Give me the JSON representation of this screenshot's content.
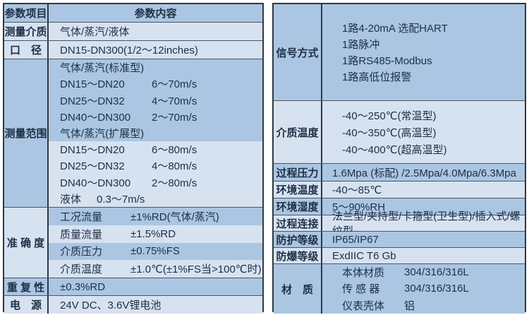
{
  "colors": {
    "medium_blue": "#abc6e2",
    "light_blue": "#d7e2f1",
    "border_dark": "#2e3842",
    "grid_line": "#4a5663",
    "text": "#1d2f44",
    "page_bg": "#ffffff"
  },
  "left_table": {
    "header": {
      "item": "参数项目",
      "content": "参数内容"
    },
    "measuring_medium": {
      "label": "测量介质",
      "value": "气体/蒸汽/液体"
    },
    "diameter": {
      "label": "口　径",
      "value": "DN15-DN300(1/2～12inches)"
    },
    "measuring_range": {
      "label": "测量范围",
      "lines": [
        {
          "name": "气体/蒸汽(标准型)",
          "value": ""
        },
        {
          "name": "DN15～DN20",
          "value": "6～70m/s"
        },
        {
          "name": "DN25～DN32",
          "value": "4～70m/s"
        },
        {
          "name": "DN40～DN300",
          "value": "2～70m/s"
        },
        {
          "name": "气体/蒸汽(扩展型)",
          "value": ""
        },
        {
          "name": "DN15～DN20",
          "value": "6～80m/s"
        },
        {
          "name": "DN25～DN32",
          "value": "4～80m/s"
        },
        {
          "name": "DN40～DN300",
          "value": "2～80m/s"
        },
        {
          "name": "液体",
          "value": "0.3～7m/s"
        }
      ]
    },
    "accuracy": {
      "label": "准 确 度",
      "lines": [
        {
          "name": "工况流量",
          "value": "±1%RD(气体/蒸汽)"
        },
        {
          "name": "质量流量",
          "value": "±1.5%RD"
        },
        {
          "name": "介质压力",
          "value": "±0.75%FS"
        },
        {
          "name": "介质温度",
          "value": "±1.0℃(±1%FS当>100℃时)"
        }
      ]
    },
    "repeatability": {
      "label": "重 复 性",
      "value": "±0.3%RD"
    },
    "power": {
      "label": "电　源",
      "value": "24V DC、3.6V锂电池"
    }
  },
  "right_table": {
    "signal_mode": {
      "label": "信号方式",
      "lines": [
        "1路4-20mA 选配HART",
        "1路脉冲",
        "1路RS485-Modbus",
        "1路高低位报警"
      ]
    },
    "medium_temperature": {
      "label": "介质温度",
      "lines": [
        "-40～250℃(常温型)",
        "-40～350℃(高温型)",
        "-40～400℃(超高温型)"
      ]
    },
    "process_pressure": {
      "label": "过程压力",
      "value": "1.6Mpa (标配) /2.5Mpa/4.0Mpa/6.3Mpa"
    },
    "ambient_temperature": {
      "label": "环境温度",
      "value": "-40～85℃"
    },
    "ambient_humidity": {
      "label": "环境湿度",
      "value": "5～90%RH"
    },
    "process_connection": {
      "label": "过程连接",
      "value": "法兰型/夹持型/卡箍型(卫生型)/插入式/螺纹型"
    },
    "protection_rating": {
      "label": "防护等级",
      "value": "IP65/IP67"
    },
    "explosion_proof_rating": {
      "label": "防爆等级",
      "value": "ExdIIC T6 Gb"
    },
    "material": {
      "label": "材　质",
      "lines": [
        {
          "name": "本体材质",
          "value": "304/316/316L"
        },
        {
          "name": "传 感 器",
          "value": "304/316/316L"
        },
        {
          "name": "仪表壳体",
          "value": "铝"
        }
      ]
    }
  }
}
